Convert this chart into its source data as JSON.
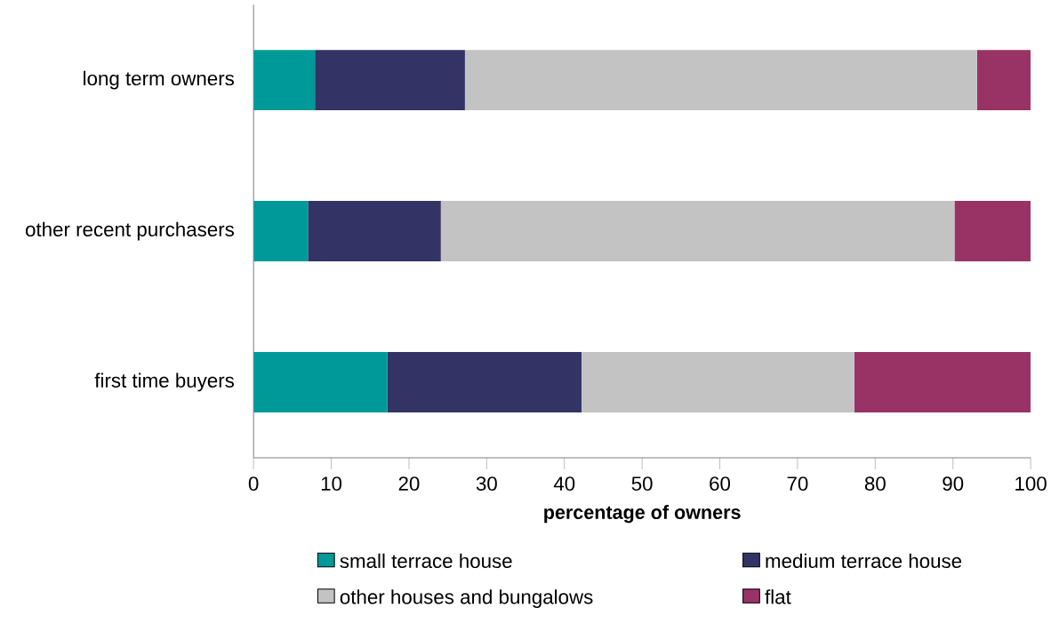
{
  "chart_data": {
    "type": "bar",
    "orientation": "horizontal",
    "stacked": true,
    "xlabel": "percentage of owners",
    "categories": [
      "long term owners",
      "other recent purchasers",
      "first time buyers"
    ],
    "series": [
      {
        "name": "small terrace house",
        "color": "#009999",
        "values": [
          7.9,
          7.0,
          17.2
        ]
      },
      {
        "name": "medium terrace house",
        "color": "#333366",
        "values": [
          19.3,
          17.1,
          25.0
        ]
      },
      {
        "name": "other houses and bungalows",
        "color": "#c3c3c3",
        "values": [
          65.9,
          66.1,
          35.1
        ]
      },
      {
        "name": "flat",
        "color": "#993366",
        "values": [
          6.9,
          9.8,
          22.7
        ]
      }
    ],
    "xlim": [
      0,
      100
    ],
    "xticks": [
      0,
      10,
      20,
      30,
      40,
      50,
      60,
      70,
      80,
      90,
      100
    ],
    "grid": false,
    "legend": "bottom"
  }
}
